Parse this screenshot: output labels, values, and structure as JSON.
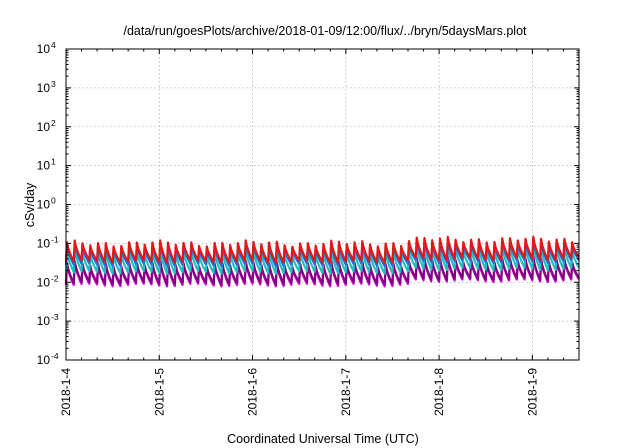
{
  "chart_data": {
    "type": "line",
    "title": "/data/run/goesPlots/archive/2018-01-09/12:00/flux/../bryn/5daysMars.plot",
    "xlabel": "Coordinated Universal Time (UTC)",
    "ylabel": "cSv/day",
    "yscale": "log",
    "ylim": [
      0.0001,
      10000
    ],
    "y_ticks": [
      {
        "base": "10",
        "exp": "-4",
        "value": 0.0001
      },
      {
        "base": "10",
        "exp": "-3",
        "value": 0.001
      },
      {
        "base": "10",
        "exp": "-2",
        "value": 0.01
      },
      {
        "base": "10",
        "exp": "-1",
        "value": 0.1
      },
      {
        "base": "10",
        "exp": "0",
        "value": 1
      },
      {
        "base": "10",
        "exp": "1",
        "value": 10
      },
      {
        "base": "10",
        "exp": "2",
        "value": 100
      },
      {
        "base": "10",
        "exp": "3",
        "value": 1000
      },
      {
        "base": "10",
        "exp": "4",
        "value": 10000
      }
    ],
    "xlim": [
      "2018-01-04 00:00",
      "2018-01-09 12:00"
    ],
    "x_ticks": [
      {
        "label": "2018-1-4",
        "value": "2018-01-04"
      },
      {
        "label": "2018-1-5",
        "value": "2018-01-05"
      },
      {
        "label": "2018-1-6",
        "value": "2018-01-06"
      },
      {
        "label": "2018-1-7",
        "value": "2018-01-07"
      },
      {
        "label": "2018-1-8",
        "value": "2018-01-08"
      },
      {
        "label": "2018-1-9",
        "value": "2018-01-09"
      }
    ],
    "grid": true,
    "legend": "none",
    "pattern": "sawtooth",
    "cycles_per_day": 12,
    "series": [
      {
        "color": "#e000e0",
        "peak": 0.028,
        "trough": 0.0085,
        "peak_late": 0.035,
        "trough_late": 0.011
      },
      {
        "color": "#800080",
        "peak": 0.03,
        "trough": 0.0095,
        "peak_late": 0.038,
        "trough_late": 0.012
      },
      {
        "color": "#20c0c0",
        "peak": 0.06,
        "trough": 0.018,
        "peak_late": 0.075,
        "trough_late": 0.022
      },
      {
        "color": "#1e6fe0",
        "peak": 0.085,
        "trough": 0.028,
        "peak_late": 0.105,
        "trough_late": 0.034
      },
      {
        "color": "#e01818",
        "peak": 0.1,
        "trough": 0.034,
        "peak_late": 0.125,
        "trough_late": 0.04
      }
    ],
    "colors": {
      "grid": "#b0b0b0",
      "frame": "#000000"
    }
  }
}
